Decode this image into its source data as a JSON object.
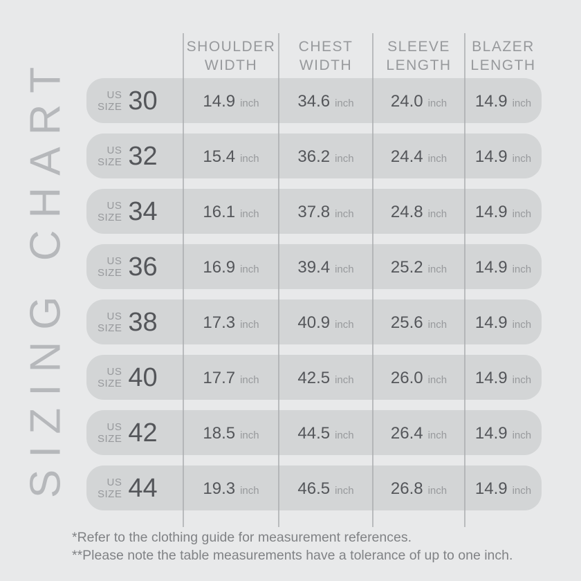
{
  "title": "SIZING CHART",
  "table": {
    "size_label": {
      "line1": "US",
      "line2": "SIZE"
    },
    "unit": "inch",
    "columns": [
      {
        "line1": "SHOULDER",
        "line2": "WIDTH"
      },
      {
        "line1": "CHEST",
        "line2": "WIDTH"
      },
      {
        "line1": "SLEEVE",
        "line2": "LENGTH"
      },
      {
        "line1": "BLAZER",
        "line2": "LENGTH"
      }
    ],
    "rows": [
      {
        "size": "30",
        "shoulder": "14.9",
        "chest": "34.6",
        "sleeve": "24.0",
        "blazer": "14.9"
      },
      {
        "size": "32",
        "shoulder": "15.4",
        "chest": "36.2",
        "sleeve": "24.4",
        "blazer": "14.9"
      },
      {
        "size": "34",
        "shoulder": "16.1",
        "chest": "37.8",
        "sleeve": "24.8",
        "blazer": "14.9"
      },
      {
        "size": "36",
        "shoulder": "16.9",
        "chest": "39.4",
        "sleeve": "25.2",
        "blazer": "14.9"
      },
      {
        "size": "38",
        "shoulder": "17.3",
        "chest": "40.9",
        "sleeve": "25.6",
        "blazer": "14.9"
      },
      {
        "size": "40",
        "shoulder": "17.7",
        "chest": "42.5",
        "sleeve": "26.0",
        "blazer": "14.9"
      },
      {
        "size": "42",
        "shoulder": "18.5",
        "chest": "44.5",
        "sleeve": "26.4",
        "blazer": "14.9"
      },
      {
        "size": "44",
        "shoulder": "19.3",
        "chest": "46.5",
        "sleeve": "26.8",
        "blazer": "14.9"
      }
    ]
  },
  "footnotes": [
    "*Refer to the clothing guide for measurement references.",
    "**Please note the table measurements have a tolerance of up to one inch."
  ],
  "colors": {
    "background": "#e8e9ea",
    "row_pill": "#d3d5d6",
    "text_dark": "#54565a",
    "text_mid": "#97999c",
    "text_light": "#b6b8bb",
    "divider": "#a9abae",
    "footnote": "#808285"
  },
  "chart_data": {
    "type": "table",
    "title": "SIZING CHART",
    "columns": [
      "US SIZE",
      "SHOULDER WIDTH (inch)",
      "CHEST WIDTH (inch)",
      "SLEEVE LENGTH (inch)",
      "BLAZER LENGTH (inch)"
    ],
    "rows": [
      [
        30,
        14.9,
        34.6,
        24.0,
        14.9
      ],
      [
        32,
        15.4,
        36.2,
        24.4,
        14.9
      ],
      [
        34,
        16.1,
        37.8,
        24.8,
        14.9
      ],
      [
        36,
        16.9,
        39.4,
        25.2,
        14.9
      ],
      [
        38,
        17.3,
        40.9,
        25.6,
        14.9
      ],
      [
        40,
        17.7,
        42.5,
        26.0,
        14.9
      ],
      [
        42,
        18.5,
        44.5,
        26.4,
        14.9
      ],
      [
        44,
        19.3,
        46.5,
        26.8,
        14.9
      ]
    ],
    "footnotes": [
      "*Refer to the clothing guide for measurement references.",
      "**Please note the table measurements have a tolerance of up to one inch."
    ]
  }
}
